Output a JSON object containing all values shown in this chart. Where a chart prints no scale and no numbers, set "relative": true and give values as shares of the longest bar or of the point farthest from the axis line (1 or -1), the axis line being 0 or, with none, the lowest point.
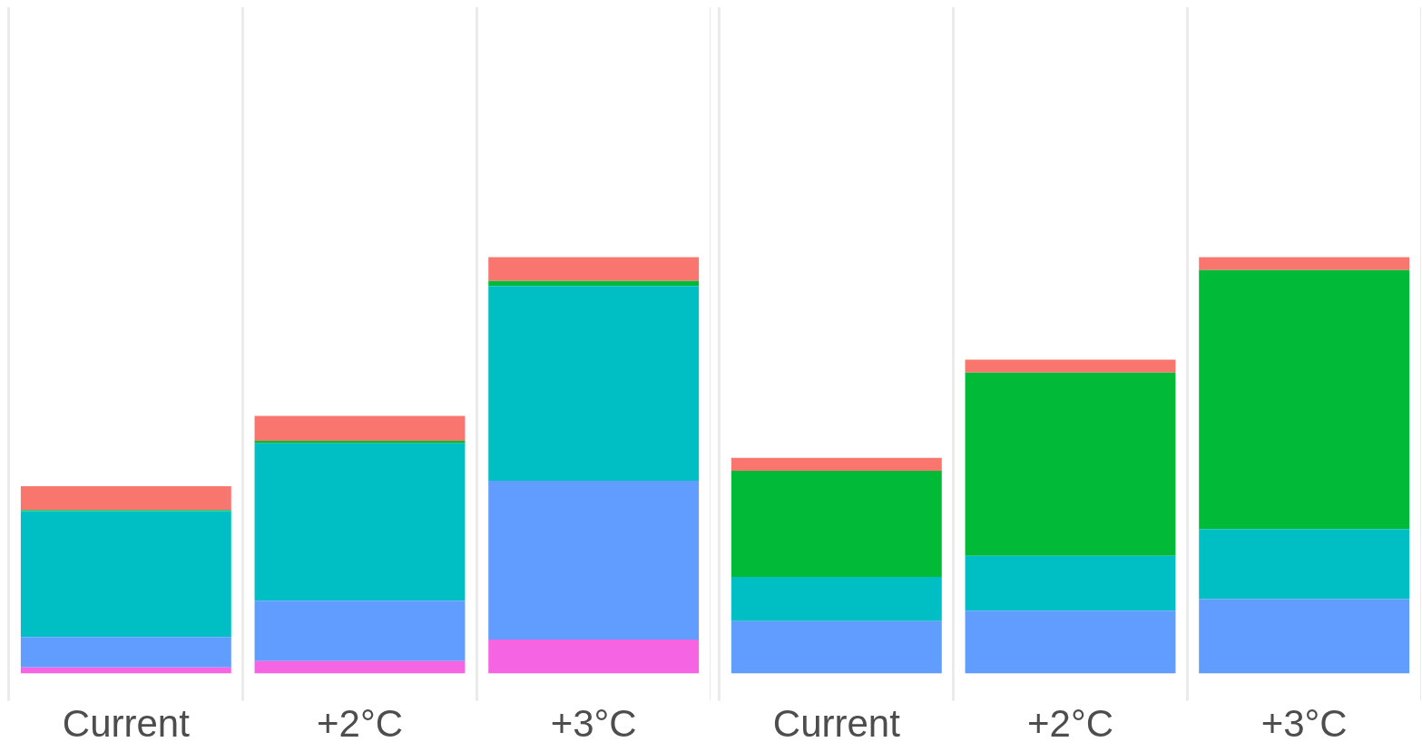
{
  "chart_data": [
    {
      "type": "bar",
      "stacked": true,
      "relative": true,
      "grid": "x",
      "tick_labels": "x",
      "legend": false,
      "categories": [
        "Current",
        "+2°C",
        "+3°C"
      ],
      "series": [
        {
          "color": "#f564e3",
          "values": [
            0.015,
            0.03,
            0.082
          ]
        },
        {
          "color": "#619cff",
          "values": [
            0.073,
            0.145,
            0.381
          ]
        },
        {
          "color": "#00bfc4",
          "values": [
            0.302,
            0.378,
            0.468
          ]
        },
        {
          "color": "#00ba38",
          "values": [
            0.003,
            0.006,
            0.012
          ]
        },
        {
          "color": "#f8766d",
          "values": [
            0.057,
            0.06,
            0.057
          ]
        }
      ]
    },
    {
      "type": "bar",
      "stacked": true,
      "relative": true,
      "grid": "x",
      "tick_labels": "x",
      "legend": false,
      "categories": [
        "Current",
        "+2°C",
        "+3°C"
      ],
      "series": [
        {
          "color": "#619cff",
          "values": [
            0.126,
            0.151,
            0.179
          ]
        },
        {
          "color": "#00bfc4",
          "values": [
            0.106,
            0.132,
            0.168
          ]
        },
        {
          "color": "#00ba38",
          "values": [
            0.255,
            0.44,
            0.622
          ]
        },
        {
          "color": "#f8766d",
          "values": [
            0.031,
            0.031,
            0.031
          ]
        }
      ]
    }
  ]
}
